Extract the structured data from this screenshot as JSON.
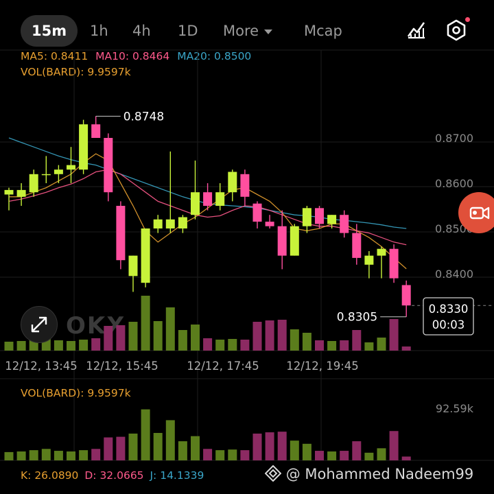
{
  "tabs": [
    {
      "label": "15m",
      "active": true
    },
    {
      "label": "1h",
      "active": false
    },
    {
      "label": "4h",
      "active": false
    },
    {
      "label": "1D",
      "active": false
    },
    {
      "label": "More",
      "active": false
    },
    {
      "label": "Mcap",
      "active": false
    }
  ],
  "icons": {
    "indicators": "chart-line-icon",
    "settings": "hexagon-settings-icon",
    "expand": "expand-arrows-icon",
    "record": "video-camera-icon",
    "watermark": "diamond-logo-icon"
  },
  "ma_legend": {
    "ma5": "MA5: 0.8411",
    "ma10": "MA10: 0.8464",
    "ma20": "MA20: 0.8500"
  },
  "vol_legend_main": "VOL(BARD): 9.9597k",
  "vol_legend_sub": "VOL(BARD): 9.9597k",
  "vol_axis_label": "92.59k",
  "kdj": {
    "k": "K: 26.0890",
    "d": "D: 32.0665",
    "j": "J: 14.1339"
  },
  "watermark_logo": "OKX",
  "credit": "@ Mohammed Nadeem99",
  "colors": {
    "up": "#c8f23a",
    "down": "#ff4f9f",
    "vol_up": "#5b7d1c",
    "vol_down": "#8c2a62",
    "ma5": "#e8a030",
    "ma10": "#ff5a8c",
    "ma20": "#3aa6c9"
  },
  "chart_data": {
    "type": "candlestick",
    "y_ticks": [
      "0.8700",
      "0.8600",
      "0.8500",
      "0.8400"
    ],
    "ylim": [
      0.826,
      0.882
    ],
    "x_ticks": [
      "12/12, 13:45",
      "12/12, 15:45",
      "12/12, 17:45",
      "12/12, 19:45"
    ],
    "high_label": "0.8748",
    "low_label": "0.8305",
    "current_price": "0.8330",
    "countdown": "00:03",
    "candles": [
      {
        "o": 0.8575,
        "h": 0.859,
        "l": 0.854,
        "c": 0.8585
      },
      {
        "o": 0.857,
        "h": 0.86,
        "l": 0.855,
        "c": 0.8585
      },
      {
        "o": 0.858,
        "h": 0.863,
        "l": 0.857,
        "c": 0.862
      },
      {
        "o": 0.862,
        "h": 0.866,
        "l": 0.86,
        "c": 0.862
      },
      {
        "o": 0.862,
        "h": 0.864,
        "l": 0.86,
        "c": 0.863
      },
      {
        "o": 0.863,
        "h": 0.868,
        "l": 0.86,
        "c": 0.864
      },
      {
        "o": 0.863,
        "h": 0.874,
        "l": 0.862,
        "c": 0.873
      },
      {
        "o": 0.873,
        "h": 0.8748,
        "l": 0.87,
        "c": 0.87
      },
      {
        "o": 0.87,
        "h": 0.871,
        "l": 0.856,
        "c": 0.858
      },
      {
        "o": 0.855,
        "h": 0.856,
        "l": 0.841,
        "c": 0.843
      },
      {
        "o": 0.8395,
        "h": 0.844,
        "l": 0.836,
        "c": 0.844
      },
      {
        "o": 0.838,
        "h": 0.85,
        "l": 0.837,
        "c": 0.85
      },
      {
        "o": 0.85,
        "h": 0.853,
        "l": 0.849,
        "c": 0.852
      },
      {
        "o": 0.85,
        "h": 0.867,
        "l": 0.849,
        "c": 0.852
      },
      {
        "o": 0.85,
        "h": 0.853,
        "l": 0.849,
        "c": 0.8525
      },
      {
        "o": 0.853,
        "h": 0.865,
        "l": 0.852,
        "c": 0.858
      },
      {
        "o": 0.858,
        "h": 0.86,
        "l": 0.854,
        "c": 0.855
      },
      {
        "o": 0.855,
        "h": 0.86,
        "l": 0.854,
        "c": 0.858
      },
      {
        "o": 0.858,
        "h": 0.863,
        "l": 0.856,
        "c": 0.8625
      },
      {
        "o": 0.862,
        "h": 0.863,
        "l": 0.855,
        "c": 0.857
      },
      {
        "o": 0.8555,
        "h": 0.856,
        "l": 0.85,
        "c": 0.8515
      },
      {
        "o": 0.8515,
        "h": 0.853,
        "l": 0.85,
        "c": 0.8505
      },
      {
        "o": 0.8505,
        "h": 0.854,
        "l": 0.841,
        "c": 0.844
      },
      {
        "o": 0.844,
        "h": 0.851,
        "l": 0.844,
        "c": 0.8505
      },
      {
        "o": 0.8505,
        "h": 0.855,
        "l": 0.849,
        "c": 0.8545
      },
      {
        "o": 0.8545,
        "h": 0.855,
        "l": 0.85,
        "c": 0.851
      },
      {
        "o": 0.851,
        "h": 0.853,
        "l": 0.85,
        "c": 0.853
      },
      {
        "o": 0.853,
        "h": 0.854,
        "l": 0.848,
        "c": 0.849
      },
      {
        "o": 0.849,
        "h": 0.851,
        "l": 0.842,
        "c": 0.8435
      },
      {
        "o": 0.842,
        "h": 0.845,
        "l": 0.839,
        "c": 0.844
      },
      {
        "o": 0.844,
        "h": 0.846,
        "l": 0.839,
        "c": 0.8455
      },
      {
        "o": 0.8455,
        "h": 0.8465,
        "l": 0.838,
        "c": 0.839
      },
      {
        "o": 0.8375,
        "h": 0.8385,
        "l": 0.8305,
        "c": 0.833
      }
    ],
    "volume": [
      0.13,
      0.14,
      0.16,
      0.18,
      0.15,
      0.14,
      0.16,
      0.18,
      0.36,
      0.37,
      0.42,
      0.8,
      0.43,
      0.63,
      0.3,
      0.38,
      0.18,
      0.16,
      0.17,
      0.16,
      0.42,
      0.44,
      0.45,
      0.31,
      0.26,
      0.15,
      0.14,
      0.15,
      0.3,
      0.12,
      0.19,
      0.46,
      0.06
    ],
    "ma5": [
      0.857,
      0.857,
      0.858,
      0.859,
      0.8605,
      0.862,
      0.8645,
      0.8665,
      0.865,
      0.86,
      0.855,
      0.8495,
      0.847,
      0.849,
      0.851,
      0.8525,
      0.8545,
      0.8565,
      0.8585,
      0.859,
      0.8575,
      0.856,
      0.8535,
      0.85,
      0.8495,
      0.85,
      0.851,
      0.851,
      0.8495,
      0.848,
      0.846,
      0.8435,
      0.8411
    ],
    "ma10": [
      0.856,
      0.8565,
      0.8572,
      0.858,
      0.859,
      0.8598,
      0.861,
      0.8625,
      0.863,
      0.862,
      0.86,
      0.858,
      0.856,
      0.855,
      0.854,
      0.853,
      0.8525,
      0.8528,
      0.854,
      0.855,
      0.8548,
      0.854,
      0.853,
      0.852,
      0.851,
      0.8505,
      0.8505,
      0.85,
      0.8495,
      0.849,
      0.848,
      0.847,
      0.8464
    ],
    "ma20": [
      0.87,
      0.869,
      0.868,
      0.867,
      0.866,
      0.8652,
      0.8645,
      0.864,
      0.863,
      0.862,
      0.861,
      0.86,
      0.859,
      0.858,
      0.857,
      0.8562,
      0.8555,
      0.8552,
      0.855,
      0.8548,
      0.8545,
      0.854,
      0.8535,
      0.853,
      0.8528,
      0.8525,
      0.852,
      0.8518,
      0.8515,
      0.8512,
      0.8508,
      0.8503,
      0.85
    ]
  }
}
